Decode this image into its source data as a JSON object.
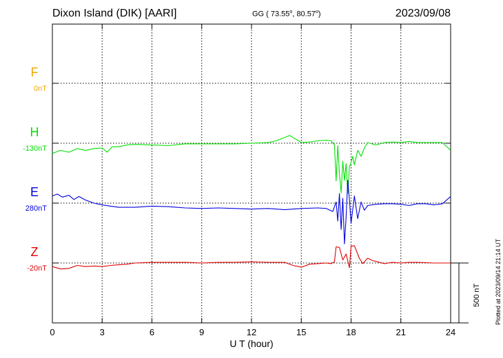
{
  "header": {
    "station": "Dixon Island (DIK)  [AARI]",
    "coordinates": "GG ( 73.55°,  80.57°)",
    "date": "2023/09/08"
  },
  "footer_note": "Plotted at 2023/09/14 21:14 UT",
  "chart_data": {
    "type": "line",
    "xlabel": "U T (hour)",
    "xlim": [
      0,
      24
    ],
    "xticks": [
      0,
      3,
      6,
      9,
      12,
      15,
      18,
      21,
      24
    ],
    "scale_bar_label": "500 nT",
    "scale_bar_nT": 500,
    "series": [
      {
        "name": "F",
        "baseline_label": "0nT",
        "color": "#f0a800",
        "offset_index": 0,
        "x": [],
        "y": []
      },
      {
        "name": "H",
        "baseline_label": "-130nT",
        "color": "#00e000",
        "offset_index": 1,
        "x": [
          0,
          0.5,
          1,
          1.5,
          2,
          2.5,
          3,
          3.3,
          3.6,
          4,
          4.5,
          5,
          6,
          7,
          8,
          9,
          10,
          11,
          12,
          13,
          13.5,
          14.3,
          15,
          15.5,
          16,
          16.5,
          16.8,
          17,
          17.1,
          17.2,
          17.3,
          17.4,
          17.5,
          17.6,
          17.7,
          17.8,
          17.9,
          18,
          18.1,
          18.2,
          18.4,
          18.6,
          18.8,
          19,
          19.5,
          20,
          20.5,
          21,
          21.5,
          22,
          22.5,
          23,
          23.5,
          24
        ],
        "y": [
          -85,
          -60,
          -75,
          -45,
          -60,
          -45,
          -40,
          -75,
          -30,
          -30,
          -15,
          -10,
          -15,
          -20,
          -5,
          -5,
          -5,
          -5,
          0,
          5,
          20,
          65,
          5,
          10,
          20,
          25,
          20,
          -15,
          -315,
          -20,
          -250,
          -415,
          -150,
          -310,
          -170,
          -420,
          -200,
          -160,
          -110,
          -180,
          -60,
          -110,
          -40,
          5,
          -15,
          5,
          10,
          5,
          15,
          5,
          5,
          5,
          5,
          -60
        ],
        "note": "offset in nT from baseline -130nT"
      },
      {
        "name": "E",
        "baseline_label": "280nT",
        "color": "#0000e0",
        "offset_index": 2,
        "x": [
          0,
          0.3,
          0.6,
          1,
          1.3,
          1.6,
          2,
          2.5,
          3,
          3.5,
          4,
          5,
          6,
          7,
          8,
          9,
          10,
          11,
          12,
          13,
          14,
          15,
          16,
          16.5,
          16.9,
          17.1,
          17.2,
          17.3,
          17.4,
          17.5,
          17.6,
          17.7,
          17.8,
          17.9,
          18,
          18.2,
          18.4,
          18.6,
          18.8,
          19,
          19.5,
          20,
          20.5,
          21,
          21.5,
          22,
          22.5,
          23,
          23.5,
          24
        ],
        "y": [
          60,
          75,
          50,
          65,
          30,
          55,
          25,
          0,
          -15,
          -25,
          -35,
          -35,
          -25,
          -30,
          -40,
          -45,
          -40,
          -45,
          -50,
          -45,
          -55,
          -45,
          -40,
          -45,
          -70,
          10,
          -150,
          80,
          -220,
          40,
          -340,
          -120,
          190,
          30,
          -170,
          60,
          -130,
          10,
          -60,
          -20,
          -10,
          -5,
          -5,
          -10,
          -20,
          -5,
          -5,
          -15,
          -5,
          55
        ],
        "note": "offset in nT from baseline 280nT"
      },
      {
        "name": "Z",
        "baseline_label": "-20nT",
        "color": "#e00000",
        "offset_index": 3,
        "x": [
          0,
          0.5,
          1,
          1.5,
          2,
          2.5,
          3,
          3.5,
          4,
          4.5,
          5,
          6,
          7,
          8,
          9,
          10,
          11,
          12,
          13,
          14,
          14.5,
          15,
          15.5,
          16,
          16.5,
          16.8,
          17,
          17.1,
          17.3,
          17.5,
          17.7,
          17.9,
          18,
          18.2,
          18.5,
          18.7,
          19,
          19.3,
          19.6,
          20,
          20.5,
          21,
          21.5,
          22,
          23,
          24
        ],
        "y": [
          -30,
          -50,
          -45,
          -20,
          -30,
          -25,
          -30,
          -20,
          -15,
          -10,
          0,
          5,
          5,
          5,
          0,
          5,
          5,
          10,
          5,
          5,
          -20,
          -35,
          -10,
          -5,
          0,
          -5,
          10,
          135,
          130,
          25,
          75,
          -40,
          140,
          145,
          40,
          -5,
          40,
          20,
          10,
          -5,
          5,
          0,
          5,
          5,
          0,
          0
        ],
        "note": "offset in nT from baseline -20nT"
      }
    ],
    "grid": true
  }
}
